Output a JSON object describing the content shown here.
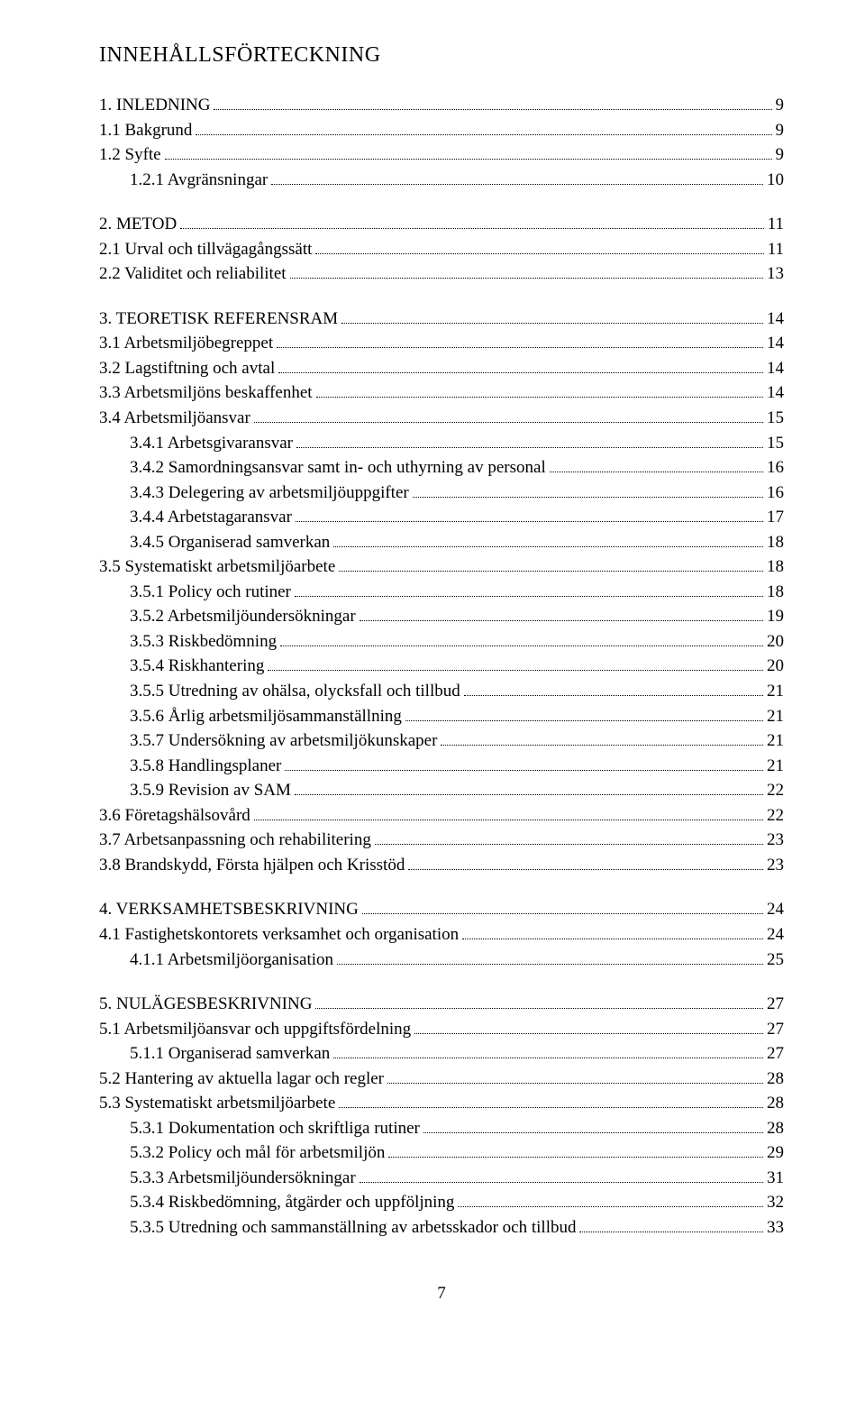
{
  "title": "INNEHÅLLSFÖRTECKNING",
  "page_number": "7",
  "sections": [
    {
      "items": [
        {
          "label": "1. INLEDNING",
          "page": "9",
          "indent": 0
        },
        {
          "label": "1.1 Bakgrund",
          "page": "9",
          "indent": 1
        },
        {
          "label": "1.2 Syfte",
          "page": "9",
          "indent": 1
        },
        {
          "label": "1.2.1 Avgränsningar",
          "page": "10",
          "indent": 2
        }
      ]
    },
    {
      "items": [
        {
          "label": "2. METOD",
          "page": "11",
          "indent": 0
        },
        {
          "label": "2.1 Urval och tillvägagångssätt",
          "page": "11",
          "indent": 1
        },
        {
          "label": "2.2 Validitet och reliabilitet",
          "page": "13",
          "indent": 1
        }
      ]
    },
    {
      "items": [
        {
          "label": "3. TEORETISK REFERENSRAM",
          "page": "14",
          "indent": 0
        },
        {
          "label": "3.1 Arbetsmiljöbegreppet",
          "page": "14",
          "indent": 1
        },
        {
          "label": "3.2 Lagstiftning och avtal",
          "page": "14",
          "indent": 1
        },
        {
          "label": "3.3 Arbetsmiljöns beskaffenhet",
          "page": "14",
          "indent": 1
        },
        {
          "label": "3.4 Arbetsmiljöansvar",
          "page": "15",
          "indent": 1
        },
        {
          "label": "3.4.1 Arbetsgivaransvar",
          "page": "15",
          "indent": 2
        },
        {
          "label": "3.4.2 Samordningsansvar samt in- och uthyrning av personal",
          "page": "16",
          "indent": 2
        },
        {
          "label": "3.4.3 Delegering av arbetsmiljöuppgifter",
          "page": "16",
          "indent": 2
        },
        {
          "label": "3.4.4 Arbetstagaransvar",
          "page": "17",
          "indent": 2
        },
        {
          "label": "3.4.5 Organiserad samverkan",
          "page": "18",
          "indent": 2
        },
        {
          "label": "3.5 Systematiskt arbetsmiljöarbete",
          "page": "18",
          "indent": 1
        },
        {
          "label": "3.5.1 Policy och rutiner",
          "page": "18",
          "indent": 2
        },
        {
          "label": "3.5.2 Arbetsmiljöundersökningar",
          "page": "19",
          "indent": 2
        },
        {
          "label": "3.5.3 Riskbedömning",
          "page": "20",
          "indent": 2
        },
        {
          "label": "3.5.4 Riskhantering",
          "page": "20",
          "indent": 2
        },
        {
          "label": "3.5.5 Utredning av ohälsa, olycksfall och tillbud",
          "page": "21",
          "indent": 2
        },
        {
          "label": "3.5.6 Årlig arbetsmiljösammanställning",
          "page": "21",
          "indent": 2
        },
        {
          "label": "3.5.7 Undersökning av arbetsmiljökunskaper",
          "page": "21",
          "indent": 2
        },
        {
          "label": "3.5.8 Handlingsplaner",
          "page": "21",
          "indent": 2
        },
        {
          "label": "3.5.9 Revision av SAM",
          "page": "22",
          "indent": 2
        },
        {
          "label": "3.6 Företagshälsovård",
          "page": "22",
          "indent": 1
        },
        {
          "label": "3.7 Arbetsanpassning och rehabilitering",
          "page": "23",
          "indent": 1
        },
        {
          "label": "3.8 Brandskydd, Första hjälpen och Krisstöd",
          "page": "23",
          "indent": 1
        }
      ]
    },
    {
      "items": [
        {
          "label": "4. VERKSAMHETSBESKRIVNING",
          "page": "24",
          "indent": 0
        },
        {
          "label": "4.1 Fastighetskontorets verksamhet och organisation",
          "page": "24",
          "indent": 1
        },
        {
          "label": "4.1.1 Arbetsmiljöorganisation",
          "page": "25",
          "indent": 2
        }
      ]
    },
    {
      "items": [
        {
          "label": "5. NULÄGESBESKRIVNING",
          "page": "27",
          "indent": 0
        },
        {
          "label": "5.1 Arbetsmiljöansvar och uppgiftsfördelning",
          "page": "27",
          "indent": 1
        },
        {
          "label": "5.1.1 Organiserad samverkan",
          "page": "27",
          "indent": 2
        },
        {
          "label": "5.2 Hantering av aktuella lagar och regler",
          "page": "28",
          "indent": 1
        },
        {
          "label": "5.3 Systematiskt arbetsmiljöarbete",
          "page": "28",
          "indent": 1
        },
        {
          "label": "5.3.1 Dokumentation och skriftliga rutiner",
          "page": "28",
          "indent": 2
        },
        {
          "label": "5.3.2 Policy och mål för arbetsmiljön",
          "page": "29",
          "indent": 2
        },
        {
          "label": "5.3.3 Arbetsmiljöundersökningar",
          "page": "31",
          "indent": 2
        },
        {
          "label": "5.3.4 Riskbedömning, åtgärder och uppföljning",
          "page": "32",
          "indent": 2
        },
        {
          "label": "5.3.5 Utredning och sammanställning av arbetsskador och tillbud",
          "page": "33",
          "indent": 2
        }
      ]
    }
  ]
}
